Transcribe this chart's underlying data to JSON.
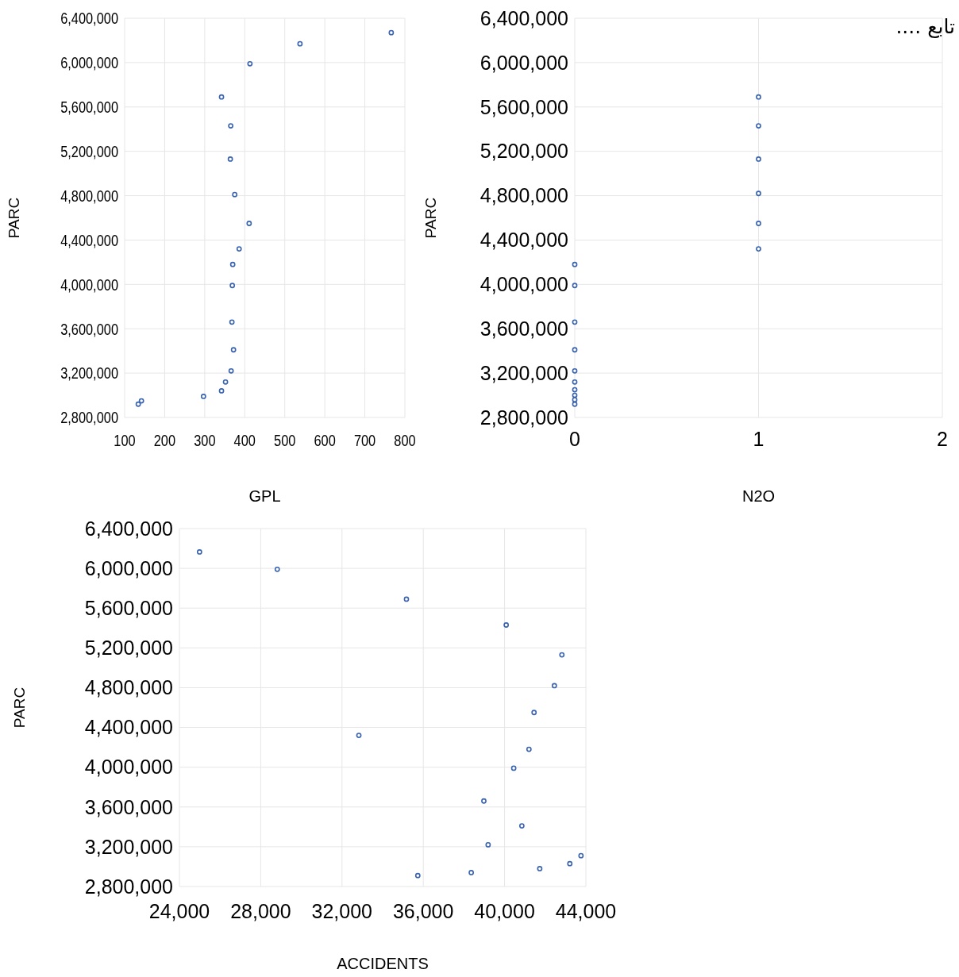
{
  "chart_data": [
    {
      "type": "scatter",
      "xlabel": "GPL",
      "ylabel": "PARC",
      "color": "#3a64b0",
      "marker": "circle",
      "grid": true,
      "x": [
        766,
        538,
        413,
        342,
        365,
        364,
        375,
        411,
        386,
        370,
        369,
        368,
        372,
        366,
        352,
        342,
        297,
        142,
        134
      ],
      "values": [
        6270000,
        6170000,
        5990000,
        5690000,
        5430000,
        5130000,
        4810000,
        4550000,
        4320000,
        4180000,
        3990000,
        3660000,
        3410000,
        3220000,
        3120000,
        3040000,
        2990000,
        2950000,
        2920000
      ],
      "xlim": [
        100,
        800
      ],
      "xticks": [
        100,
        200,
        300,
        400,
        500,
        600,
        700,
        800
      ],
      "ylim": [
        2800000,
        6400000
      ],
      "yticks": [
        {
          "value": 2800000,
          "label": "2,800,000"
        },
        {
          "value": 3200000,
          "label": "3,200,000"
        },
        {
          "value": 3600000,
          "label": "3,600,000"
        },
        {
          "value": 4000000,
          "label": "4,000,000"
        },
        {
          "value": 4400000,
          "label": "4,400,000"
        },
        {
          "value": 4800000,
          "label": "4,800,000"
        },
        {
          "value": 5200000,
          "label": "5,200,000"
        },
        {
          "value": 5600000,
          "label": "5,600,000"
        },
        {
          "value": 6000000,
          "label": "6,000,000"
        },
        {
          "value": 6400000,
          "label": "6,400,000"
        }
      ]
    },
    {
      "type": "scatter",
      "xlabel": "N2O",
      "ylabel": "PARC",
      "color": "#3a64b0",
      "marker": "circle",
      "grid": true,
      "annotations": [
        "تابع ...."
      ],
      "x": [
        1,
        1,
        1,
        1,
        1,
        1,
        0,
        0,
        0,
        0,
        0,
        0,
        0,
        0,
        0,
        0
      ],
      "values": [
        5690000,
        5430000,
        5130000,
        4820000,
        4550000,
        4320000,
        4180000,
        3990000,
        3660000,
        3410000,
        3220000,
        3120000,
        3050000,
        3000000,
        2960000,
        2920000
      ],
      "xlim": [
        0,
        2
      ],
      "xticks": [
        0,
        1,
        2
      ],
      "ylim": [
        2800000,
        6400000
      ],
      "yticks": [
        {
          "value": 2800000,
          "label": "2,800,000"
        },
        {
          "value": 3200000,
          "label": "3,200,000"
        },
        {
          "value": 3600000,
          "label": "3,600,000"
        },
        {
          "value": 4000000,
          "label": "4,000,000"
        },
        {
          "value": 4400000,
          "label": "4,400,000"
        },
        {
          "value": 4800000,
          "label": "4,800,000"
        },
        {
          "value": 5200000,
          "label": "5,200,000"
        },
        {
          "value": 5600000,
          "label": "5,600,000"
        },
        {
          "value": 6000000,
          "label": "6,000,000"
        },
        {
          "value": 6400000,
          "label": "6,400,000"
        }
      ]
    },
    {
      "type": "scatter",
      "xlabel": "ACCIDENTS",
      "ylabel": "PARC",
      "color": "#3a64b0",
      "marker": "circle",
      "grid": true,
      "x": [
        24990,
        28815,
        35170,
        40080,
        42820,
        42450,
        41450,
        32830,
        41200,
        40450,
        38980,
        40850,
        39190,
        43760,
        43210,
        41730,
        38360,
        35730
      ],
      "values": [
        6165000,
        5990000,
        5690000,
        5430000,
        5130000,
        4820000,
        4550000,
        4320000,
        4180000,
        3990000,
        3660000,
        3410000,
        3220000,
        3110000,
        3030000,
        2980000,
        2940000,
        2910000
      ],
      "xlim": [
        24000,
        44000
      ],
      "xticks": [
        {
          "value": 24000,
          "label": "24,000"
        },
        {
          "value": 28000,
          "label": "28,000"
        },
        {
          "value": 32000,
          "label": "32,000"
        },
        {
          "value": 36000,
          "label": "36,000"
        },
        {
          "value": 40000,
          "label": "40,000"
        },
        {
          "value": 44000,
          "label": "44,000"
        }
      ],
      "ylim": [
        2800000,
        6400000
      ],
      "yticks": [
        {
          "value": 2800000,
          "label": "2,800,000"
        },
        {
          "value": 3200000,
          "label": "3,200,000"
        },
        {
          "value": 3600000,
          "label": "3,600,000"
        },
        {
          "value": 4000000,
          "label": "4,000,000"
        },
        {
          "value": 4400000,
          "label": "4,400,000"
        },
        {
          "value": 4800000,
          "label": "4,800,000"
        },
        {
          "value": 5200000,
          "label": "5,200,000"
        },
        {
          "value": 5600000,
          "label": "5,600,000"
        },
        {
          "value": 6000000,
          "label": "6,000,000"
        },
        {
          "value": 6400000,
          "label": "6,400,000"
        }
      ]
    }
  ]
}
